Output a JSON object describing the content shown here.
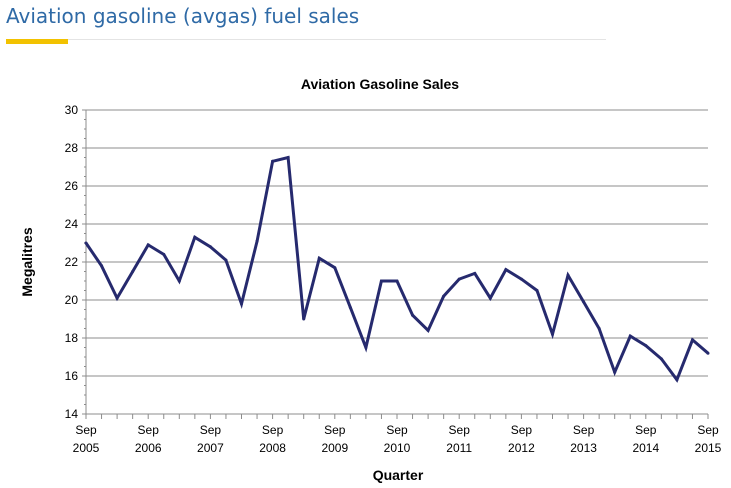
{
  "page": {
    "heading": "Aviation gasoline (avgas) fuel sales",
    "accent_color": "#f2c200"
  },
  "chart_data": {
    "type": "line",
    "title": "Aviation Gasoline Sales",
    "xlabel": "Quarter",
    "ylabel": "Megalitres",
    "ylim": [
      14,
      30
    ],
    "yticks": [
      14,
      16,
      18,
      20,
      22,
      24,
      26,
      28,
      30
    ],
    "grid": true,
    "x_tick_labels": [
      {
        "index": 0,
        "line1": "Sep",
        "line2": "2005"
      },
      {
        "index": 4,
        "line1": "Sep",
        "line2": "2006"
      },
      {
        "index": 8,
        "line1": "Sep",
        "line2": "2007"
      },
      {
        "index": 12,
        "line1": "Sep",
        "line2": "2008"
      },
      {
        "index": 16,
        "line1": "Sep",
        "line2": "2009"
      },
      {
        "index": 20,
        "line1": "Sep",
        "line2": "2010"
      },
      {
        "index": 24,
        "line1": "Sep",
        "line2": "2011"
      },
      {
        "index": 28,
        "line1": "Sep",
        "line2": "2012"
      },
      {
        "index": 32,
        "line1": "Sep",
        "line2": "2013"
      },
      {
        "index": 36,
        "line1": "Sep",
        "line2": "2014"
      },
      {
        "index": 40,
        "line1": "Sep",
        "line2": "2015"
      }
    ],
    "series": [
      {
        "name": "Aviation Gasoline Sales",
        "color": "#262a6e",
        "values": [
          23.0,
          21.8,
          20.1,
          21.5,
          22.9,
          22.4,
          21.0,
          23.3,
          22.8,
          22.1,
          19.8,
          23.1,
          27.3,
          27.5,
          19.0,
          22.2,
          21.7,
          19.6,
          17.5,
          21.0,
          21.0,
          19.2,
          18.4,
          20.2,
          21.1,
          21.4,
          20.1,
          21.6,
          21.1,
          20.5,
          18.2,
          21.3,
          19.9,
          18.5,
          16.2,
          18.1,
          17.6,
          16.9,
          15.8,
          17.9,
          17.2
        ]
      }
    ]
  }
}
